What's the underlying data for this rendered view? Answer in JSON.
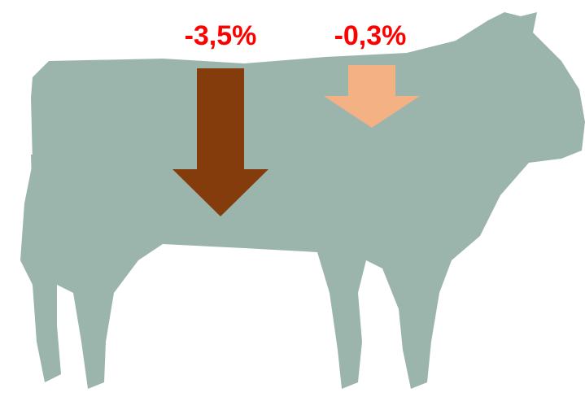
{
  "labels": [
    "-3,5%",
    "-0,3%"
  ]
}
